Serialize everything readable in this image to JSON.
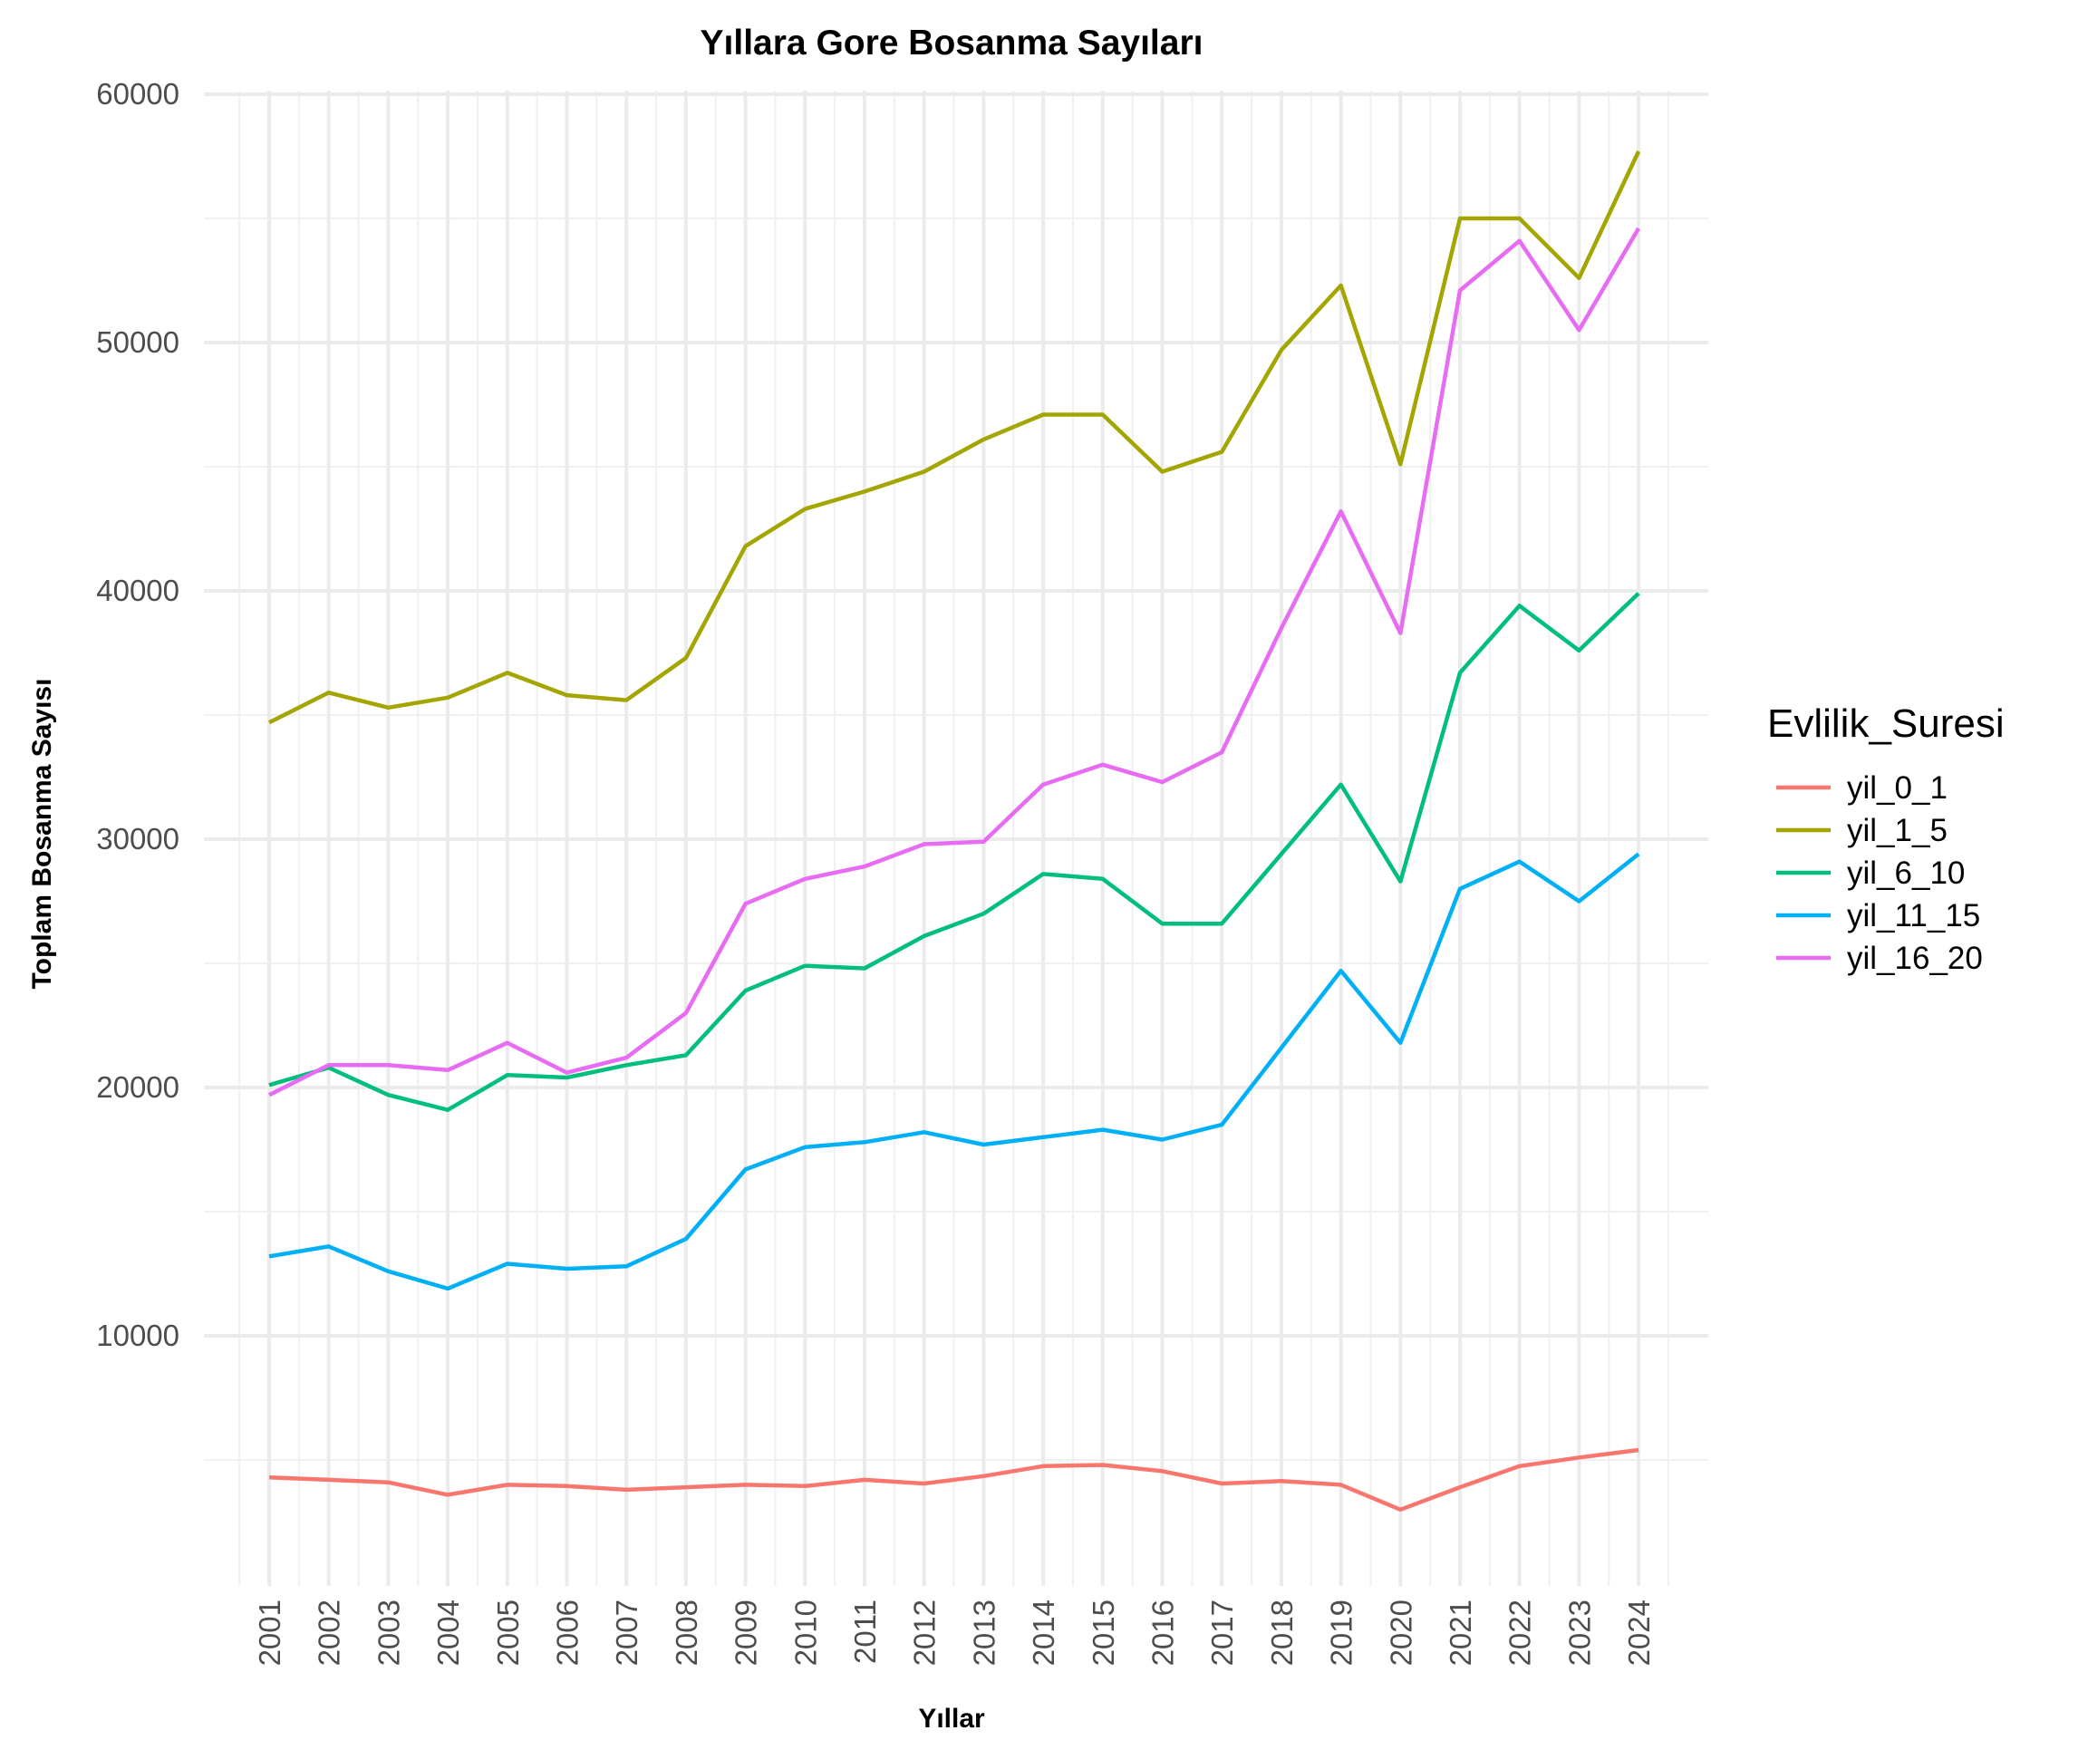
{
  "chart_data": {
    "type": "line",
    "title": "Yıllara Gore Bosanma Sayıları",
    "xlabel": "Yıllar",
    "ylabel": "Toplam Bosanma Sayısı",
    "x": [
      "2001",
      "2002",
      "2003",
      "2004",
      "2005",
      "2006",
      "2007",
      "2008",
      "2009",
      "2010",
      "2011",
      "2012",
      "2013",
      "2014",
      "2015",
      "2016",
      "2017",
      "2018",
      "2019",
      "2020",
      "2021",
      "2022",
      "2023",
      "2024"
    ],
    "yticks": [
      "10000",
      "20000",
      "30000",
      "40000",
      "50000",
      "60000"
    ],
    "ylim": [
      0,
      60000
    ],
    "grid": true,
    "legend": {
      "title": "Evlilik_Suresi",
      "position": "right"
    },
    "series": [
      {
        "name": "yil_0_1",
        "color": "#F8766D",
        "values": [
          4300,
          4200,
          4100,
          3600,
          4000,
          3950,
          3800,
          3900,
          4000,
          3950,
          4200,
          4050,
          4350,
          4750,
          4800,
          4550,
          4050,
          4150,
          4000,
          3000,
          3900,
          4750,
          5100,
          5400
        ]
      },
      {
        "name": "yil_1_5",
        "color": "#A3A500",
        "values": [
          34700,
          35900,
          35300,
          35700,
          36700,
          35800,
          35600,
          37300,
          41800,
          43300,
          44000,
          44800,
          46100,
          47100,
          47100,
          44800,
          45600,
          49700,
          52300,
          45100,
          55000,
          55000,
          52600,
          57700
        ]
      },
      {
        "name": "yil_6_10",
        "color": "#00BF7D",
        "values": [
          20100,
          20800,
          19700,
          19100,
          20500,
          20400,
          20900,
          21300,
          23900,
          24900,
          24800,
          26100,
          27000,
          28600,
          28400,
          26600,
          26600,
          29400,
          32200,
          28300,
          36700,
          39400,
          37600,
          39900
        ]
      },
      {
        "name": "yil_11_15",
        "color": "#00B0F6",
        "values": [
          13200,
          13600,
          12600,
          11900,
          12900,
          12700,
          12800,
          13900,
          16700,
          17600,
          17800,
          18200,
          17700,
          18000,
          18300,
          17900,
          18500,
          21600,
          24700,
          21800,
          28000,
          29100,
          27500,
          29400
        ]
      },
      {
        "name": "yil_16_20",
        "color": "#E76BF3",
        "values": [
          19700,
          20900,
          20900,
          20700,
          21800,
          20600,
          21200,
          23000,
          27400,
          28400,
          28900,
          29800,
          29900,
          32200,
          33000,
          32300,
          33500,
          38500,
          43200,
          38300,
          52100,
          54100,
          50500,
          54600
        ]
      }
    ]
  }
}
